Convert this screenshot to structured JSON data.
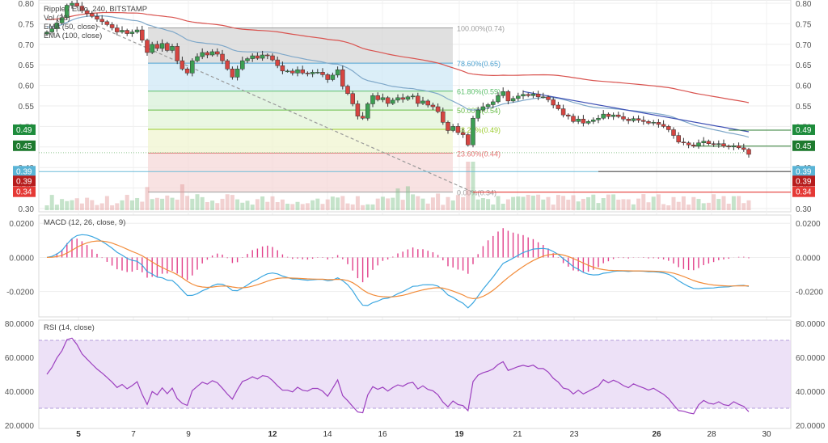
{
  "chart_data": {
    "type": "candlestick",
    "title": "Ripple / Euro, 240, BITSTAMP",
    "price_panel": {
      "ylim": [
        0.3,
        0.8
      ],
      "ticks": [
        "0.80",
        "0.75",
        "0.70",
        "0.65",
        "0.60",
        "0.55",
        "0.50",
        "0.45",
        "0.40",
        "0.35",
        "0.30"
      ],
      "legend": [
        "Ripple / Euro, 240, BITSTAMP",
        "Vol (20)",
        "EMA (50, close)",
        "EMA (100, close)"
      ],
      "fib_levels": [
        {
          "ratio": 1.0,
          "label": "100.00%(0.74)",
          "price": 0.74
        },
        {
          "ratio": 0.786,
          "label": "78.60%(0.65)",
          "price": 0.654
        },
        {
          "ratio": 0.618,
          "label": "61.80%(0.59)",
          "price": 0.586
        },
        {
          "ratio": 0.5,
          "label": "50.00%(0.54)",
          "price": 0.54
        },
        {
          "ratio": 0.382,
          "label": "38.20%(0.49)",
          "price": 0.493
        },
        {
          "ratio": 0.236,
          "label": "23.60%(0.44)",
          "price": 0.435
        },
        {
          "ratio": 0.0,
          "label": "0.00%(0.34)",
          "price": 0.34
        }
      ],
      "price_badges": [
        {
          "label": "0.49",
          "price": 0.491,
          "color": "#1e8c3c"
        },
        {
          "label": "0.45",
          "price": 0.452,
          "color": "#1e7a2e"
        },
        {
          "label": "0.39",
          "price": 0.39,
          "color": "#5ab4d6"
        },
        {
          "label": "0.39",
          "price": 0.39,
          "color": "#b71c1c"
        },
        {
          "label": "0.34",
          "price": 0.34,
          "color": "#e53935"
        }
      ]
    },
    "x_labels": [
      "5",
      "7",
      "9",
      "12",
      "14",
      "16",
      "19",
      "21",
      "23",
      "26",
      "28",
      "30"
    ],
    "bold_x_labels": [
      "5",
      "12",
      "19",
      "26"
    ],
    "macd_panel": {
      "legend": "MACD (12, 26, close, 9)",
      "ticks": [
        "0.0200",
        "0.0000",
        "-0.0200"
      ],
      "ylim": [
        -0.032,
        0.022
      ]
    },
    "rsi_panel": {
      "legend": "RSI (14, close)",
      "ticks": [
        "80.0000",
        "60.0000",
        "40.0000",
        "20.0000"
      ],
      "ylim": [
        20,
        80
      ],
      "band": [
        30,
        70
      ]
    },
    "series": [
      {
        "name": "Ripple / Euro, 240, BITSTAMP",
        "close": [
          0.73,
          0.738,
          0.752,
          0.765,
          0.795,
          0.8,
          0.793,
          0.782,
          0.775,
          0.768,
          0.761,
          0.755,
          0.748,
          0.74,
          0.73,
          0.734,
          0.726,
          0.73,
          0.735,
          0.71,
          0.68,
          0.7,
          0.69,
          0.702,
          0.685,
          0.695,
          0.66,
          0.64,
          0.63,
          0.66,
          0.67,
          0.68,
          0.674,
          0.682,
          0.676,
          0.66,
          0.64,
          0.62,
          0.64,
          0.66,
          0.665,
          0.672,
          0.666,
          0.674,
          0.672,
          0.662,
          0.648,
          0.635,
          0.635,
          0.63,
          0.638,
          0.63,
          0.628,
          0.632,
          0.632,
          0.626,
          0.614,
          0.625,
          0.638,
          0.598,
          0.58,
          0.555,
          0.525,
          0.52,
          0.555,
          0.575,
          0.565,
          0.57,
          0.556,
          0.564,
          0.57,
          0.566,
          0.572,
          0.574,
          0.556,
          0.562,
          0.552,
          0.548,
          0.536,
          0.51,
          0.49,
          0.5,
          0.485,
          0.48,
          0.455,
          0.52,
          0.54,
          0.548,
          0.553,
          0.56,
          0.575,
          0.585,
          0.562,
          0.568,
          0.574,
          0.578,
          0.575,
          0.579,
          0.572,
          0.572,
          0.565,
          0.552,
          0.543,
          0.528,
          0.525,
          0.512,
          0.518,
          0.508,
          0.512,
          0.516,
          0.52,
          0.53,
          0.524,
          0.528,
          0.524,
          0.518,
          0.514,
          0.519,
          0.515,
          0.512,
          0.508,
          0.51,
          0.505,
          0.5,
          0.492,
          0.478,
          0.462,
          0.46,
          0.455,
          0.452,
          0.46,
          0.464,
          0.458,
          0.456,
          0.458,
          0.452,
          0.45,
          0.453,
          0.448,
          0.444,
          0.432
        ]
      }
    ]
  }
}
